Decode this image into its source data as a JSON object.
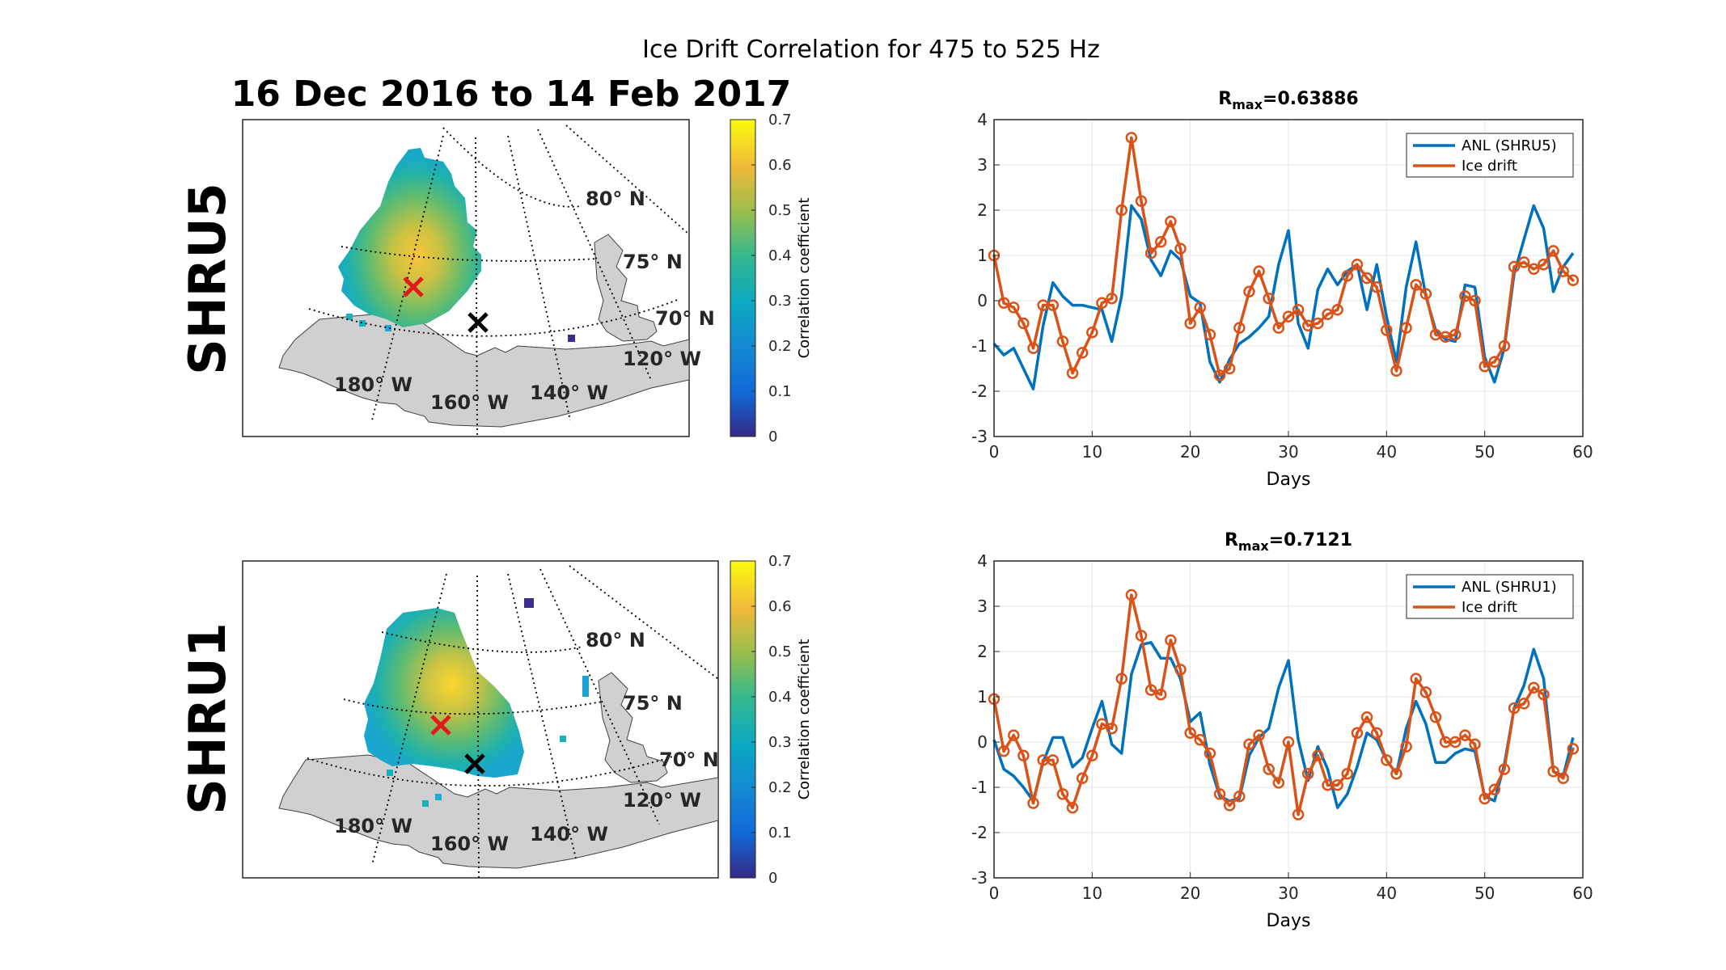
{
  "figure": {
    "suptitle": "Ice Drift Correlation for 475 to 525 Hz",
    "date_range": "16 Dec 2016 to 14 Feb 2017"
  },
  "colors": {
    "anl": "#0072BD",
    "ice": "#D95319",
    "land": "#d0d0d0",
    "grid": "#e6e6e6"
  },
  "maps": [
    {
      "row_label": "SHRU5",
      "colorbar_label": "Correlation coefficient",
      "colorbar_ticks": [
        "0",
        "0.1",
        "0.2",
        "0.3",
        "0.4",
        "0.5",
        "0.6",
        "0.7"
      ],
      "lat_labels": [
        "80° N",
        "75° N",
        "70° N"
      ],
      "lon_labels": [
        "180° W",
        "160° W",
        "140° W",
        "120° W"
      ]
    },
    {
      "row_label": "SHRU1",
      "colorbar_label": "Correlation coefficient",
      "colorbar_ticks": [
        "0",
        "0.1",
        "0.2",
        "0.3",
        "0.4",
        "0.5",
        "0.6",
        "0.7"
      ],
      "lat_labels": [
        "80° N",
        "75° N",
        "70° N"
      ],
      "lon_labels": [
        "180° W",
        "160° W",
        "140° W",
        "120° W"
      ]
    }
  ],
  "chart_data": [
    {
      "type": "line",
      "title_main": "R",
      "title_sub": "max",
      "title_value": "=0.63886",
      "xlabel": "Days",
      "ylabel": "",
      "xlim": [
        0,
        60
      ],
      "ylim": [
        -3,
        4
      ],
      "xticks": [
        0,
        10,
        20,
        30,
        40,
        50,
        60
      ],
      "yticks": [
        -3,
        -2,
        -1,
        0,
        1,
        2,
        3,
        4
      ],
      "grid": true,
      "legend_position": "top-right",
      "series": [
        {
          "name": "ANL (SHRU5)",
          "color": "#0072BD",
          "markers": false,
          "x": [
            0,
            1,
            2,
            3,
            4,
            5,
            6,
            7,
            8,
            9,
            10,
            11,
            12,
            13,
            14,
            15,
            16,
            17,
            18,
            19,
            20,
            21,
            22,
            23,
            24,
            25,
            26,
            27,
            28,
            29,
            30,
            31,
            32,
            33,
            34,
            35,
            36,
            37,
            38,
            39,
            40,
            41,
            42,
            43,
            44,
            45,
            46,
            47,
            48,
            49,
            50,
            51,
            52,
            53,
            54,
            55,
            56,
            57,
            58,
            59
          ],
          "values": [
            -0.95,
            -1.2,
            -1.05,
            -1.5,
            -1.95,
            -0.55,
            0.4,
            0.1,
            -0.1,
            -0.1,
            -0.15,
            -0.2,
            -0.9,
            0.1,
            2.1,
            1.8,
            0.9,
            0.55,
            1.1,
            0.9,
            0.1,
            -0.05,
            -1.35,
            -1.8,
            -1.3,
            -0.95,
            -0.8,
            -0.6,
            -0.35,
            0.8,
            1.55,
            -0.5,
            -1.05,
            0.25,
            0.7,
            0.35,
            0.65,
            0.8,
            -0.2,
            0.8,
            -0.35,
            -1.35,
            0.3,
            1.3,
            0.1,
            -0.65,
            -0.85,
            -0.9,
            0.35,
            0.3,
            -1.25,
            -1.8,
            -1.05,
            0.6,
            1.35,
            2.1,
            1.6,
            0.2,
            0.75,
            1.05
          ]
        },
        {
          "name": "Ice drift",
          "color": "#D95319",
          "markers": true,
          "x": [
            0,
            1,
            2,
            3,
            4,
            5,
            6,
            7,
            8,
            9,
            10,
            11,
            12,
            13,
            14,
            15,
            16,
            17,
            18,
            19,
            20,
            21,
            22,
            23,
            24,
            25,
            26,
            27,
            28,
            29,
            30,
            31,
            32,
            33,
            34,
            35,
            36,
            37,
            38,
            39,
            40,
            41,
            42,
            43,
            44,
            45,
            46,
            47,
            48,
            49,
            50,
            51,
            52,
            53,
            54,
            55,
            56,
            57,
            58,
            59
          ],
          "values": [
            1.0,
            -0.05,
            -0.15,
            -0.5,
            -1.05,
            -0.1,
            -0.1,
            -0.9,
            -1.6,
            -1.15,
            -0.7,
            -0.05,
            0.05,
            2.0,
            3.6,
            2.2,
            1.05,
            1.3,
            1.75,
            1.15,
            -0.5,
            -0.15,
            -0.75,
            -1.65,
            -1.5,
            -0.6,
            0.2,
            0.65,
            0.05,
            -0.6,
            -0.35,
            -0.2,
            -0.55,
            -0.5,
            -0.3,
            -0.2,
            0.55,
            0.8,
            0.5,
            0.3,
            -0.65,
            -1.55,
            -0.6,
            0.35,
            0.15,
            -0.75,
            -0.8,
            -0.75,
            0.1,
            0.0,
            -1.45,
            -1.35,
            -1.0,
            0.75,
            0.85,
            0.7,
            0.8,
            1.1,
            0.65,
            0.45
          ]
        }
      ]
    },
    {
      "type": "line",
      "title_main": "R",
      "title_sub": "max",
      "title_value": "=0.7121",
      "xlabel": "Days",
      "ylabel": "",
      "xlim": [
        0,
        60
      ],
      "ylim": [
        -3,
        4
      ],
      "xticks": [
        0,
        10,
        20,
        30,
        40,
        50,
        60
      ],
      "yticks": [
        -3,
        -2,
        -1,
        0,
        1,
        2,
        3,
        4
      ],
      "grid": true,
      "legend_position": "top-right",
      "series": [
        {
          "name": "ANL (SHRU1)",
          "color": "#0072BD",
          "markers": false,
          "x": [
            0,
            1,
            2,
            3,
            4,
            5,
            6,
            7,
            8,
            9,
            10,
            11,
            12,
            13,
            14,
            15,
            16,
            17,
            18,
            19,
            20,
            21,
            22,
            23,
            24,
            25,
            26,
            27,
            28,
            29,
            30,
            31,
            32,
            33,
            34,
            35,
            36,
            37,
            38,
            39,
            40,
            41,
            42,
            43,
            44,
            45,
            46,
            47,
            48,
            49,
            50,
            51,
            52,
            53,
            54,
            55,
            56,
            57,
            58,
            59
          ],
          "values": [
            0.05,
            -0.6,
            -0.75,
            -1.0,
            -1.3,
            -0.45,
            0.1,
            0.1,
            -0.55,
            -0.35,
            0.3,
            0.9,
            -0.05,
            -0.25,
            1.5,
            2.15,
            2.2,
            1.85,
            1.85,
            1.4,
            0.45,
            0.65,
            -0.5,
            -1.2,
            -1.3,
            -1.25,
            -0.3,
            0.1,
            0.3,
            1.2,
            1.8,
            0.05,
            -0.85,
            -0.1,
            -0.6,
            -1.45,
            -1.15,
            -0.55,
            0.2,
            0.05,
            -0.4,
            -0.7,
            0.3,
            0.9,
            0.4,
            -0.45,
            -0.45,
            -0.25,
            -0.15,
            -0.2,
            -1.2,
            -1.3,
            -0.5,
            0.75,
            1.25,
            2.05,
            1.4,
            -0.65,
            -0.75,
            0.1
          ]
        },
        {
          "name": "Ice drift",
          "color": "#D95319",
          "markers": true,
          "x": [
            0,
            1,
            2,
            3,
            4,
            5,
            6,
            7,
            8,
            9,
            10,
            11,
            12,
            13,
            14,
            15,
            16,
            17,
            18,
            19,
            20,
            21,
            22,
            23,
            24,
            25,
            26,
            27,
            28,
            29,
            30,
            31,
            32,
            33,
            34,
            35,
            36,
            37,
            38,
            39,
            40,
            41,
            42,
            43,
            44,
            45,
            46,
            47,
            48,
            49,
            50,
            51,
            52,
            53,
            54,
            55,
            56,
            57,
            58,
            59
          ],
          "values": [
            0.95,
            -0.2,
            0.15,
            -0.3,
            -1.35,
            -0.4,
            -0.4,
            -1.15,
            -1.45,
            -0.8,
            -0.3,
            0.4,
            0.3,
            1.4,
            3.25,
            2.35,
            1.15,
            1.05,
            2.25,
            1.6,
            0.2,
            0.05,
            -0.25,
            -1.15,
            -1.4,
            -1.2,
            -0.05,
            0.15,
            -0.6,
            -0.9,
            0.0,
            -1.6,
            -0.7,
            -0.3,
            -0.95,
            -0.95,
            -0.7,
            0.2,
            0.55,
            0.2,
            -0.4,
            -0.7,
            -0.1,
            1.4,
            1.1,
            0.55,
            0.0,
            0.0,
            0.15,
            -0.05,
            -1.25,
            -1.05,
            -0.6,
            0.75,
            0.85,
            1.2,
            1.05,
            -0.65,
            -0.8,
            -0.15
          ]
        }
      ]
    }
  ]
}
